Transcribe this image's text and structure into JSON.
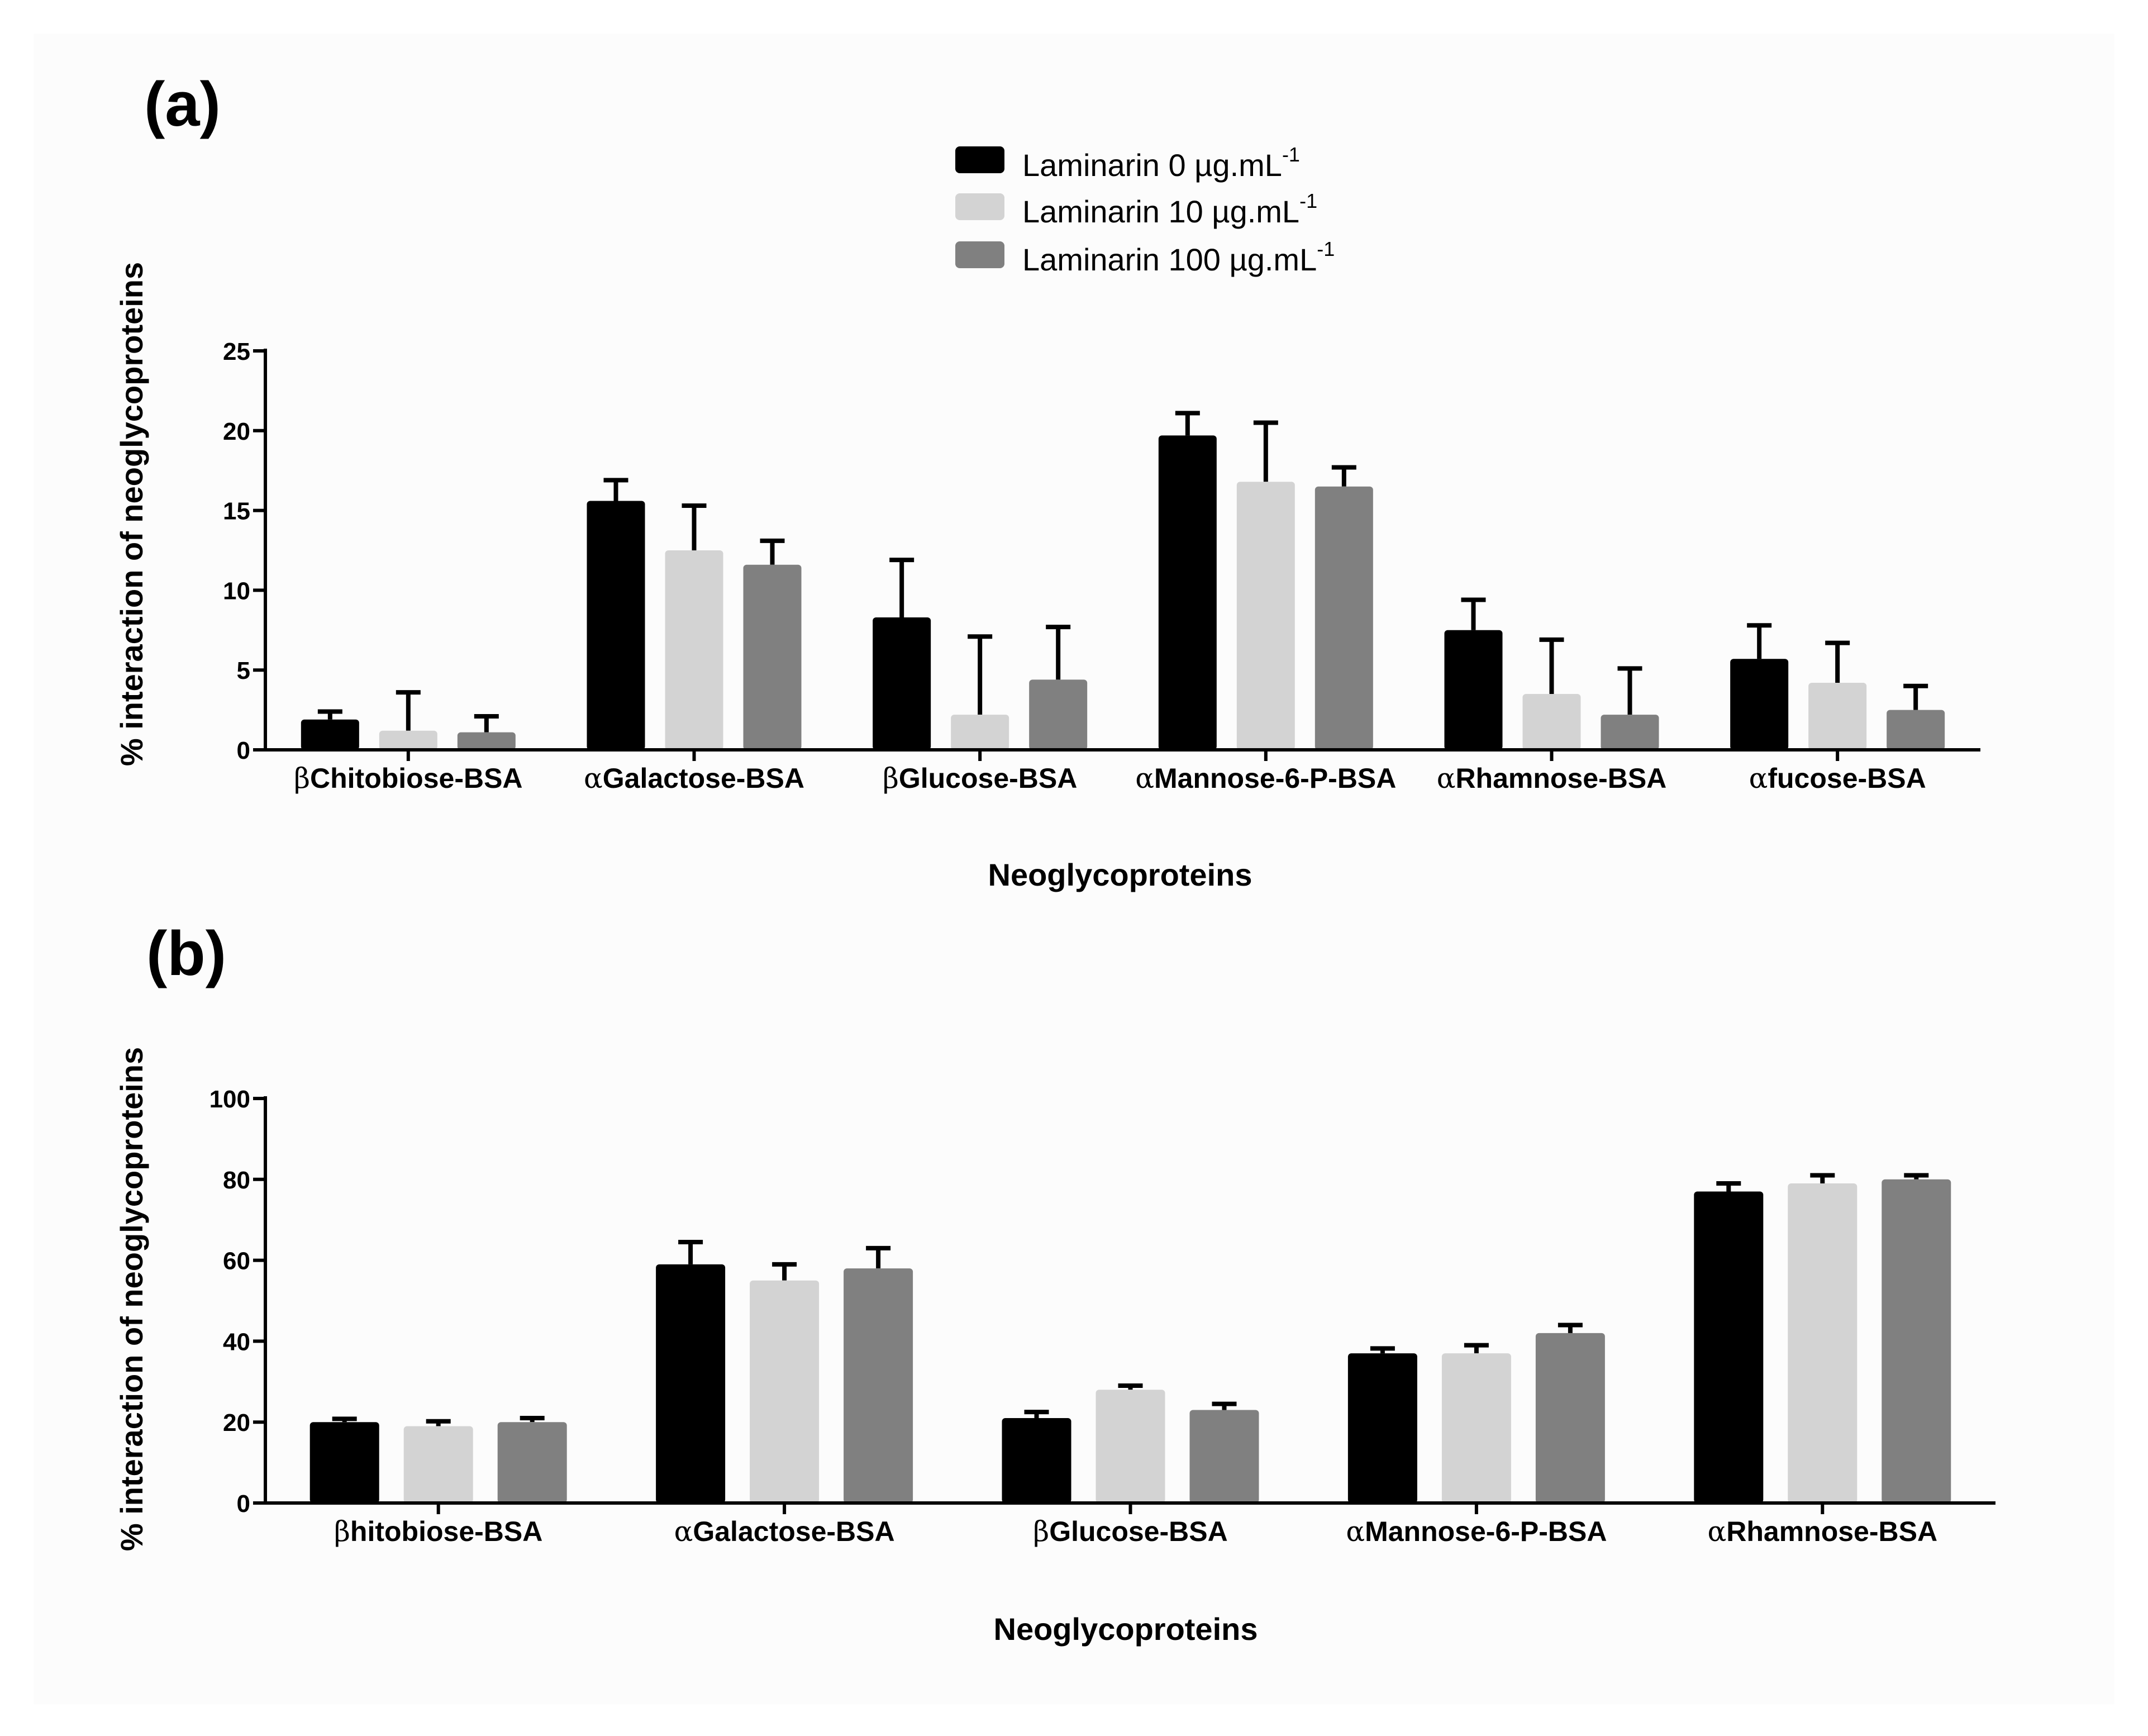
{
  "legend": {
    "entries": [
      {
        "label": "Laminarin 0 µg.mL",
        "sup": "-1",
        "color": "#000000"
      },
      {
        "label": "Laminarin 10 µg.mL",
        "sup": "-1",
        "color": "#d3d3d3"
      },
      {
        "label": "Laminarin 100 µg.mL",
        "sup": "-1",
        "color": "#808080"
      }
    ]
  },
  "chart_data": [
    {
      "type": "bar",
      "panel": "(a)",
      "ylabel": "% interaction of neoglycoproteins",
      "xlabel": "Neoglycoproteins",
      "ylim": [
        0,
        25
      ],
      "yticks": [
        "0",
        "5",
        "10",
        "15",
        "20",
        "25"
      ],
      "categories": [
        {
          "prefix": "β",
          "name": "Chitobiose-BSA"
        },
        {
          "prefix": "α",
          "name": "Galactose-BSA"
        },
        {
          "prefix": "β",
          "name": "Glucose-BSA"
        },
        {
          "prefix": "α",
          "name": "Mannose-6-P-BSA"
        },
        {
          "prefix": "α",
          "name": "Rhamnose-BSA"
        },
        {
          "prefix": "α",
          "name": "fucose-BSA"
        }
      ],
      "series": [
        {
          "name": "Laminarin 0 µg.mL-1",
          "color": "#000000",
          "values": [
            1.9,
            15.6,
            8.3,
            19.7,
            7.5,
            5.7
          ],
          "errors": [
            0.5,
            1.3,
            3.6,
            1.4,
            1.9,
            2.1
          ]
        },
        {
          "name": "Laminarin 10 µg.mL-1",
          "color": "#d3d3d3",
          "values": [
            1.2,
            12.5,
            2.2,
            16.8,
            3.5,
            4.2
          ],
          "errors": [
            2.4,
            2.8,
            4.9,
            3.7,
            3.4,
            2.5
          ]
        },
        {
          "name": "Laminarin 100 µg.mL-1",
          "color": "#808080",
          "values": [
            1.1,
            11.6,
            4.4,
            16.5,
            2.2,
            2.5
          ],
          "errors": [
            1.0,
            1.5,
            3.3,
            1.2,
            2.9,
            1.5
          ]
        }
      ]
    },
    {
      "type": "bar",
      "panel": "(b)",
      "ylabel": "% interaction of neoglycoproteins",
      "xlabel": "Neoglycoproteins",
      "ylim": [
        0,
        100
      ],
      "yticks": [
        "0",
        "20",
        "40",
        "60",
        "80",
        "100"
      ],
      "categories": [
        {
          "prefix": "β",
          "name": "hitobiose-BSA"
        },
        {
          "prefix": "α",
          "name": "Galactose-BSA"
        },
        {
          "prefix": "β",
          "name": "Glucose-BSA"
        },
        {
          "prefix": "α",
          "name": "Mannose-6-P-BSA"
        },
        {
          "prefix": "α",
          "name": "Rhamnose-BSA"
        }
      ],
      "series": [
        {
          "name": "Laminarin 0 µg.mL-1",
          "color": "#000000",
          "values": [
            20,
            59,
            21,
            37,
            77
          ],
          "errors": [
            0.8,
            5.5,
            1.5,
            1.2,
            2.0
          ]
        },
        {
          "name": "Laminarin 10 µg.mL-1",
          "color": "#d3d3d3",
          "values": [
            19,
            55,
            28,
            37,
            79
          ],
          "errors": [
            1.2,
            4.0,
            1.0,
            2.0,
            2.0
          ]
        },
        {
          "name": "Laminarin 100 µg.mL-1",
          "color": "#808080",
          "values": [
            20,
            58,
            23,
            42,
            80
          ],
          "errors": [
            1.0,
            5.0,
            1.5,
            2.0,
            1.0
          ]
        }
      ]
    }
  ]
}
